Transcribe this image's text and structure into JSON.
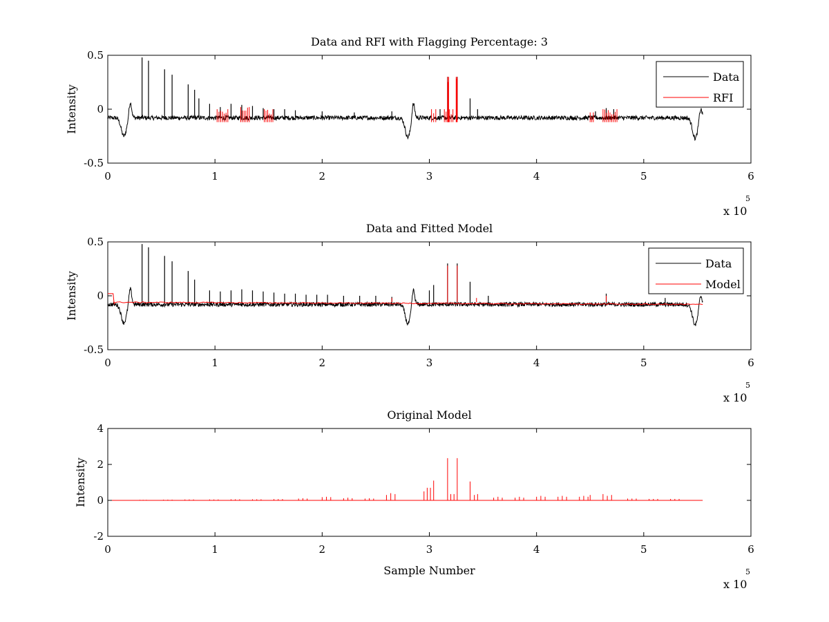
{
  "chart_data": [
    {
      "type": "line",
      "title": "Data and RFI with Flagging Percentage: 3",
      "xlabel": "",
      "ylabel": "Intensity",
      "xlim": [
        0,
        6
      ],
      "ylim": [
        -0.5,
        0.5
      ],
      "x_scale_label": "x 10",
      "x_scale_exponent": "5",
      "xticks": [
        "0",
        "1",
        "2",
        "3",
        "4",
        "5",
        "6"
      ],
      "yticks": [
        "-0.5",
        "0",
        "0.5"
      ],
      "ytick_values": [
        -0.5,
        0,
        0.5
      ],
      "legend_position": "top-right",
      "series": [
        {
          "name": "Data",
          "color": "#000000",
          "baseline": -0.08,
          "noise": 0.02,
          "end_x": 5.55,
          "dips": [
            [
              0.15,
              -0.25
            ],
            [
              2.8,
              -0.26
            ],
            [
              5.48,
              -0.27
            ]
          ],
          "bumps": [
            [
              0.21,
              0.07
            ],
            [
              2.85,
              0.07
            ],
            [
              5.53,
              0.02
            ]
          ],
          "spikes": [
            [
              0.32,
              0.48
            ],
            [
              0.38,
              0.45
            ],
            [
              0.53,
              0.37
            ],
            [
              0.6,
              0.32
            ],
            [
              0.75,
              0.23
            ],
            [
              0.81,
              0.18
            ],
            [
              0.85,
              0.1
            ],
            [
              0.95,
              0.05
            ],
            [
              1.05,
              0.02
            ],
            [
              1.15,
              0.05
            ],
            [
              1.25,
              0.04
            ],
            [
              1.35,
              0.03
            ],
            [
              1.45,
              0.01
            ],
            [
              1.55,
              0.0
            ],
            [
              1.65,
              0.0
            ],
            [
              1.75,
              -0.01
            ],
            [
              2.0,
              -0.02
            ],
            [
              2.3,
              -0.03
            ],
            [
              2.65,
              -0.02
            ],
            [
              3.1,
              0.0
            ],
            [
              3.17,
              0.3
            ],
            [
              3.26,
              0.3
            ],
            [
              3.38,
              0.1
            ],
            [
              3.45,
              0.0
            ],
            [
              4.55,
              -0.02
            ],
            [
              4.65,
              0.01
            ],
            [
              4.72,
              0.0
            ]
          ]
        },
        {
          "name": "RFI",
          "color": "#ff0000",
          "clusters": [
            [
              1.02,
              1.12,
              0.0
            ],
            [
              1.24,
              1.32,
              0.02
            ],
            [
              1.46,
              1.54,
              0.0
            ],
            [
              3.02,
              3.06,
              0.0
            ],
            [
              3.17,
              3.18,
              0.3
            ],
            [
              3.25,
              3.26,
              0.3
            ],
            [
              3.14,
              3.22,
              0.0
            ],
            [
              4.5,
              4.53,
              -0.03
            ],
            [
              4.62,
              4.75,
              0.0
            ]
          ]
        }
      ]
    },
    {
      "type": "line",
      "title": "Data and Fitted Model",
      "xlabel": "",
      "ylabel": "Intensity",
      "xlim": [
        0,
        6
      ],
      "ylim": [
        -0.5,
        0.5
      ],
      "x_scale_label": "x 10",
      "x_scale_exponent": "5",
      "xticks": [
        "0",
        "1",
        "2",
        "3",
        "4",
        "5",
        "6"
      ],
      "yticks": [
        "-0.5",
        "0",
        "0.5"
      ],
      "ytick_values": [
        -0.5,
        0,
        0.5
      ],
      "legend_position": "top-right",
      "series": [
        {
          "name": "Data",
          "color": "#000000",
          "baseline": -0.08,
          "noise": 0.02,
          "end_x": 5.55,
          "dips": [
            [
              0.15,
              -0.25
            ],
            [
              2.8,
              -0.26
            ],
            [
              5.48,
              -0.27
            ]
          ],
          "bumps": [
            [
              0.21,
              0.07
            ],
            [
              2.85,
              0.07
            ],
            [
              5.53,
              0.02
            ]
          ],
          "spikes": [
            [
              0.32,
              0.48
            ],
            [
              0.38,
              0.45
            ],
            [
              0.53,
              0.37
            ],
            [
              0.6,
              0.32
            ],
            [
              0.75,
              0.23
            ],
            [
              0.81,
              0.15
            ],
            [
              0.95,
              0.05
            ],
            [
              1.05,
              0.04
            ],
            [
              1.15,
              0.05
            ],
            [
              1.25,
              0.06
            ],
            [
              1.35,
              0.05
            ],
            [
              1.45,
              0.04
            ],
            [
              1.55,
              0.03
            ],
            [
              1.65,
              0.02
            ],
            [
              1.75,
              0.02
            ],
            [
              1.85,
              0.01
            ],
            [
              1.95,
              0.01
            ],
            [
              2.05,
              0.01
            ],
            [
              2.2,
              0.0
            ],
            [
              2.35,
              0.0
            ],
            [
              2.5,
              0.0
            ],
            [
              2.65,
              -0.01
            ],
            [
              3.0,
              0.05
            ],
            [
              3.04,
              0.1
            ],
            [
              3.17,
              0.3
            ],
            [
              3.26,
              0.3
            ],
            [
              3.38,
              0.13
            ],
            [
              3.55,
              0.0
            ],
            [
              4.65,
              0.02
            ],
            [
              5.2,
              -0.02
            ]
          ]
        },
        {
          "name": "Model",
          "color": "#ff0000",
          "start": [
            [
              0.0,
              0.02
            ],
            [
              0.05,
              0.02
            ],
            [
              0.06,
              -0.08
            ]
          ],
          "level": -0.06,
          "level_end": -0.08,
          "end_x": 5.55,
          "small_peaks": [
            [
              3.17,
              0.28
            ],
            [
              3.26,
              0.28
            ],
            [
              4.65,
              0.0
            ],
            [
              2.65,
              -0.02
            ],
            [
              3.44,
              -0.02
            ]
          ]
        }
      ]
    },
    {
      "type": "line",
      "title": "Original Model",
      "xlabel": "Sample Number",
      "ylabel": "Intensity",
      "xlim": [
        0,
        6
      ],
      "ylim": [
        -2,
        4
      ],
      "x_scale_label": "x 10",
      "x_scale_exponent": "5",
      "xticks": [
        "0",
        "1",
        "2",
        "3",
        "4",
        "5",
        "6"
      ],
      "yticks": [
        "-2",
        "0",
        "2",
        "4"
      ],
      "ytick_values": [
        -2,
        0,
        2,
        4
      ],
      "series": [
        {
          "name": "Original Model",
          "color": "#ff0000",
          "baseline": 0,
          "end_x": 5.55,
          "peaks": [
            [
              0.3,
              0.03
            ],
            [
              0.33,
              0.03
            ],
            [
              0.36,
              0.03
            ],
            [
              0.52,
              0.04
            ],
            [
              0.56,
              0.04
            ],
            [
              0.6,
              0.04
            ],
            [
              0.72,
              0.05
            ],
            [
              0.76,
              0.05
            ],
            [
              0.8,
              0.05
            ],
            [
              0.95,
              0.05
            ],
            [
              0.99,
              0.05
            ],
            [
              1.03,
              0.05
            ],
            [
              1.15,
              0.06
            ],
            [
              1.19,
              0.06
            ],
            [
              1.23,
              0.06
            ],
            [
              1.35,
              0.06
            ],
            [
              1.39,
              0.06
            ],
            [
              1.43,
              0.06
            ],
            [
              1.55,
              0.07
            ],
            [
              1.59,
              0.07
            ],
            [
              1.63,
              0.07
            ],
            [
              1.78,
              0.1
            ],
            [
              1.82,
              0.12
            ],
            [
              1.86,
              0.1
            ],
            [
              2.0,
              0.18
            ],
            [
              2.04,
              0.2
            ],
            [
              2.08,
              0.18
            ],
            [
              2.2,
              0.12
            ],
            [
              2.24,
              0.15
            ],
            [
              2.28,
              0.12
            ],
            [
              2.4,
              0.1
            ],
            [
              2.44,
              0.12
            ],
            [
              2.48,
              0.1
            ],
            [
              2.6,
              0.3
            ],
            [
              2.64,
              0.4
            ],
            [
              2.68,
              0.35
            ],
            [
              2.95,
              0.5
            ],
            [
              2.98,
              0.7
            ],
            [
              3.01,
              0.7
            ],
            [
              3.04,
              1.1
            ],
            [
              3.17,
              2.35
            ],
            [
              3.2,
              0.35
            ],
            [
              3.23,
              0.35
            ],
            [
              3.26,
              2.35
            ],
            [
              3.38,
              1.05
            ],
            [
              3.42,
              0.3
            ],
            [
              3.45,
              0.35
            ],
            [
              3.6,
              0.15
            ],
            [
              3.64,
              0.2
            ],
            [
              3.68,
              0.15
            ],
            [
              3.8,
              0.15
            ],
            [
              3.84,
              0.2
            ],
            [
              3.88,
              0.15
            ],
            [
              4.0,
              0.2
            ],
            [
              4.04,
              0.25
            ],
            [
              4.08,
              0.2
            ],
            [
              4.2,
              0.2
            ],
            [
              4.24,
              0.25
            ],
            [
              4.28,
              0.2
            ],
            [
              4.4,
              0.2
            ],
            [
              4.44,
              0.25
            ],
            [
              4.48,
              0.2
            ],
            [
              4.5,
              0.3
            ],
            [
              4.62,
              0.35
            ],
            [
              4.66,
              0.25
            ],
            [
              4.7,
              0.3
            ],
            [
              4.85,
              0.1
            ],
            [
              4.89,
              0.1
            ],
            [
              4.93,
              0.1
            ],
            [
              5.05,
              0.08
            ],
            [
              5.09,
              0.08
            ],
            [
              5.13,
              0.08
            ],
            [
              5.25,
              0.08
            ],
            [
              5.29,
              0.08
            ],
            [
              5.33,
              0.08
            ]
          ]
        }
      ]
    }
  ]
}
